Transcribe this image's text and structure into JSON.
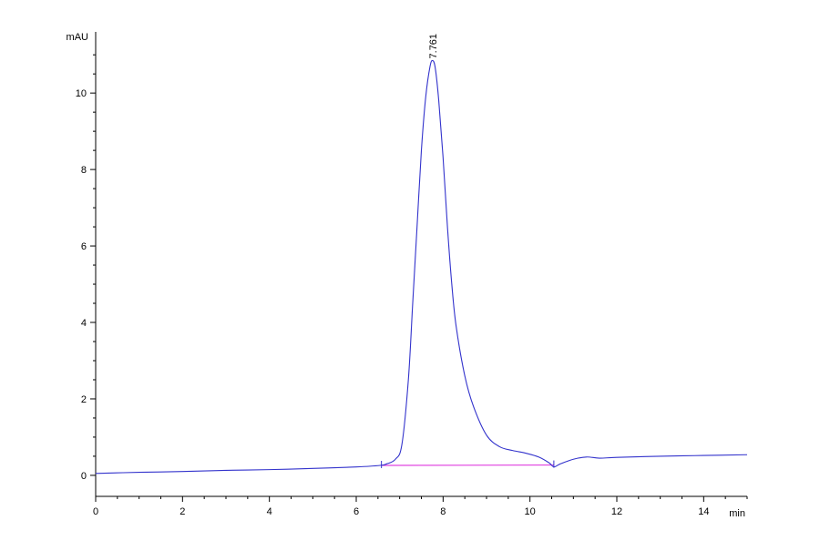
{
  "chart_data": {
    "type": "line",
    "y_unit": "mAU",
    "x_unit": "min",
    "xlim": [
      0,
      15
    ],
    "ylim": [
      -0.55,
      11.6
    ],
    "x_ticks": [
      0,
      2,
      4,
      6,
      8,
      10,
      12,
      14
    ],
    "y_ticks": [
      0,
      2,
      4,
      6,
      8,
      10
    ],
    "x_tick_labels": [
      "0",
      "2",
      "4",
      "6",
      "8",
      "10",
      "12",
      "14"
    ],
    "y_tick_labels": [
      "0",
      "2",
      "4",
      "6",
      "8",
      "10"
    ],
    "grid": false,
    "colors": {
      "signal": "#3333cc",
      "baseline": "#e040e0",
      "axis": "#000000"
    },
    "series": [
      {
        "x": [
          0,
          1,
          2,
          3,
          4,
          5,
          6,
          6.55,
          6.7,
          6.9,
          7.05,
          7.2,
          7.3,
          7.4,
          7.5,
          7.6,
          7.7,
          7.761,
          7.82,
          7.9,
          8.0,
          8.1,
          8.2,
          8.3,
          8.5,
          8.7,
          9.0,
          9.3,
          9.6,
          9.9,
          10.2,
          10.45,
          10.55,
          10.7,
          11.0,
          11.3,
          11.6,
          12,
          13,
          14,
          15
        ],
        "y": [
          0.05,
          0.08,
          0.1,
          0.13,
          0.15,
          0.18,
          0.22,
          0.26,
          0.3,
          0.42,
          0.8,
          2.5,
          4.5,
          6.5,
          8.5,
          9.9,
          10.7,
          10.85,
          10.65,
          9.8,
          8.3,
          6.5,
          5.0,
          3.9,
          2.6,
          1.8,
          1.05,
          0.75,
          0.65,
          0.58,
          0.48,
          0.32,
          0.22,
          0.3,
          0.42,
          0.48,
          0.45,
          0.47,
          0.5,
          0.52,
          0.54
        ]
      }
    ],
    "baseline_segment": {
      "x": [
        6.58,
        10.55
      ],
      "y": [
        0.26,
        0.27
      ]
    },
    "peak_annotation": {
      "x": 7.761,
      "y": 10.85,
      "label": "7.761"
    },
    "integration_marks": [
      6.58,
      10.55
    ]
  }
}
